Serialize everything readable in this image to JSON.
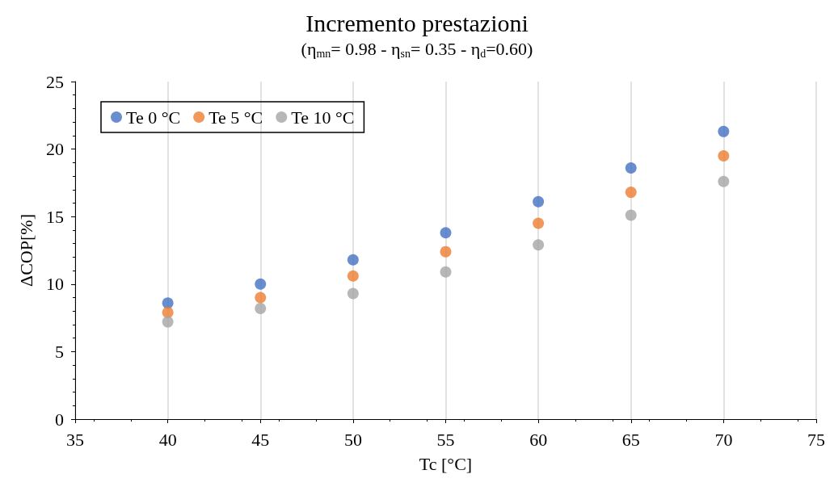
{
  "chart_data": {
    "type": "scatter",
    "title": "Incremento prestazioni",
    "subtitle": "(η$_{mn}$= 0.98 - η$_{sn}$= 0.35 - η$_{d}$=0.60)",
    "xlabel": "Tc [°C]",
    "ylabel": "ΔCOP[%]",
    "x": [
      40,
      45,
      50,
      55,
      60,
      65,
      70
    ],
    "series": [
      {
        "name": "Te 0 °C",
        "color": "#4472c4",
        "values": [
          8.6,
          10.0,
          11.8,
          13.8,
          16.1,
          18.6,
          21.3
        ]
      },
      {
        "name": "Te 5 °C",
        "color": "#ed7d31",
        "values": [
          7.9,
          9.0,
          10.6,
          12.4,
          14.5,
          16.8,
          19.5
        ]
      },
      {
        "name": "Te 10 °C",
        "color": "#a5a5a5",
        "values": [
          7.2,
          8.2,
          9.3,
          10.9,
          12.9,
          15.1,
          17.6
        ]
      }
    ],
    "xlim": [
      35,
      75
    ],
    "xticks": [
      35,
      40,
      45,
      50,
      55,
      60,
      65,
      70,
      75
    ],
    "ylim": [
      0,
      25
    ],
    "yticks": [
      0,
      5,
      10,
      15,
      20,
      25
    ],
    "grid": "x",
    "legend": "top left",
    "marker": "circle"
  }
}
